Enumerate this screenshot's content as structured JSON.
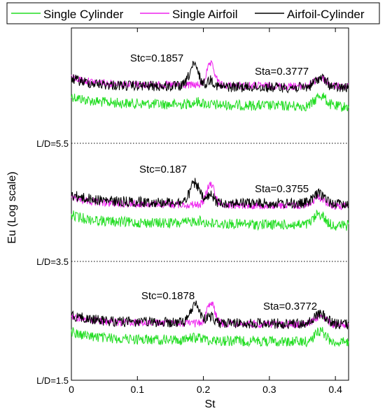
{
  "chart_data": {
    "type": "line",
    "xlabel": "St",
    "ylabel": "Eu (Log scale)",
    "xlim": [
      0,
      0.42
    ],
    "x_ticks": [
      "0",
      "0.1",
      "0.2",
      "0.3",
      "0.4"
    ],
    "x_tick_values": [
      0,
      0.1,
      0.2,
      0.3,
      0.4
    ],
    "y_scale": "log",
    "y_tick_labels": [
      "L/D=1.5",
      "L/D=3.5",
      "L/D=5.5"
    ],
    "grid": false,
    "legend": {
      "position": "top",
      "entries": [
        {
          "name": "Single Cylinder",
          "color": "#22dd22"
        },
        {
          "name": "Single Airfoil",
          "color": "#ee22ee"
        },
        {
          "name": "Airfoil-Cylinder",
          "color": "#000000"
        }
      ]
    },
    "series_colors": {
      "cylinder": "#22dd22",
      "airfoil": "#ee22ee",
      "combined": "#000000"
    },
    "panels": [
      {
        "label": "L/D=5.5",
        "stc": 0.1857,
        "sta": 0.3777,
        "annotations": {
          "stc": "Stc=0.1857",
          "sta": "Sta=0.3777"
        }
      },
      {
        "label": "L/D=3.5",
        "stc": 0.187,
        "sta": 0.3755,
        "annotations": {
          "stc": "Stc=0.187",
          "sta": "Sta=0.3755"
        }
      },
      {
        "label": "L/D=1.5",
        "stc": 0.1878,
        "sta": 0.3772,
        "annotations": {
          "stc": "Stc=0.1878",
          "sta": "Sta=0.3772"
        }
      }
    ]
  }
}
